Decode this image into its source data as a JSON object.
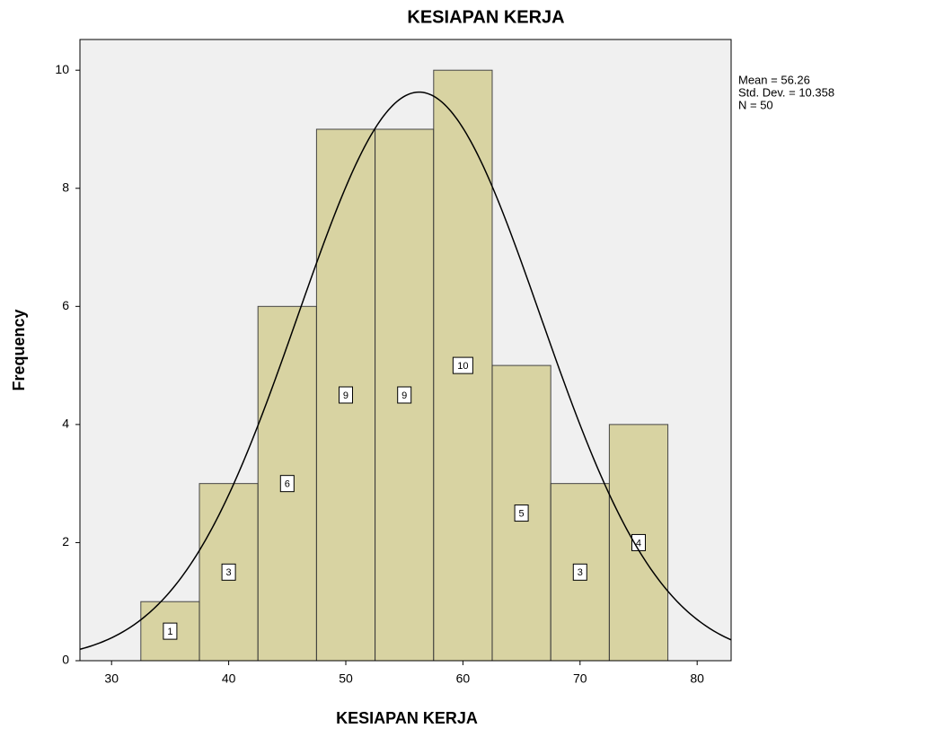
{
  "chart_data": {
    "type": "histogram",
    "title": "KESIAPAN KERJA",
    "x_label": "KESIAPAN KERJA",
    "y_label": "Frequency",
    "bins": [
      32.5,
      37.5,
      42.5,
      47.5,
      52.5,
      57.5,
      62.5,
      67.5,
      72.5,
      77.5
    ],
    "values": [
      1,
      3,
      6,
      9,
      9,
      10,
      5,
      3,
      4
    ],
    "color": "#d6d09a",
    "xlim": [
      27.3,
      82.9
    ],
    "xticks": [
      30,
      40,
      50,
      60,
      70,
      80
    ],
    "ylim": [
      0,
      10.52
    ],
    "yticks": [
      0,
      2,
      4,
      6,
      8,
      10
    ],
    "normal_curve": true,
    "stats": {
      "mean": {
        "value": 56.26,
        "label": "Mean = 56.26"
      },
      "std_dev": {
        "value": 10.358,
        "label": "Std. Dev. = 10.358"
      },
      "n": {
        "value": 50,
        "label": "N = 50"
      }
    }
  }
}
